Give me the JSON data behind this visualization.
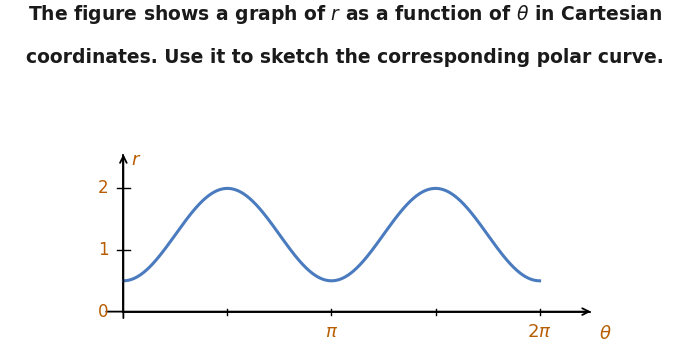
{
  "title_fontsize": 13.5,
  "title_color": "#1a1a1a",
  "label_color": "#b85c00",
  "curve_color": "#4a7bbf",
  "curve_linewidth": 2.2,
  "background_color": "#ffffff",
  "r_amplitude": 0.75,
  "r_offset": 1.25,
  "r_frequency": 2,
  "theta_start": 0,
  "theta_end": 6.2832,
  "xlim": [
    -0.3,
    7.2
  ],
  "ylim": [
    -0.15,
    2.65
  ],
  "yticks": [
    1,
    2
  ],
  "figsize": [
    6.9,
    3.45
  ],
  "dpi": 100
}
